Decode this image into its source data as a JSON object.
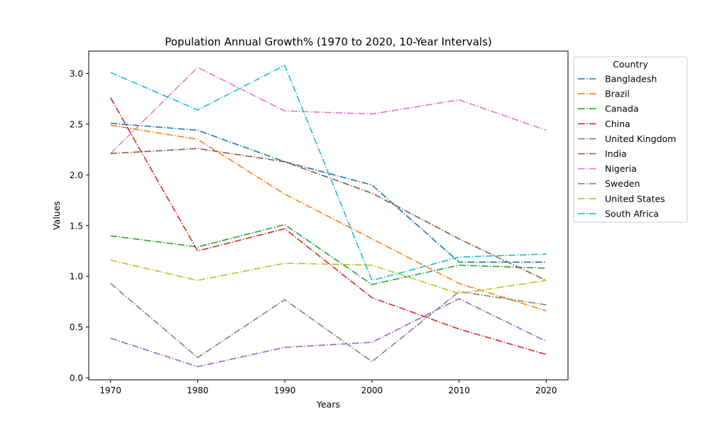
{
  "chart_data": {
    "type": "line",
    "title": "Population Annual Growth% (1970 to 2020, 10-Year Intervals)",
    "xlabel": "Years",
    "ylabel": "Values",
    "x": [
      1970,
      1980,
      1990,
      2000,
      2010,
      2020
    ],
    "xticks": [
      "1970",
      "1980",
      "1990",
      "2000",
      "2010",
      "2020"
    ],
    "yticks": [
      "0.0",
      "0.5",
      "1.0",
      "1.5",
      "2.0",
      "2.5",
      "3.0"
    ],
    "ylim": [
      -0.02,
      3.22
    ],
    "xlim": [
      1967.5,
      2022.5
    ],
    "grid": false,
    "legend": {
      "title": "Country",
      "placement": "outside-right"
    },
    "line_style": "dash-dot",
    "series": [
      {
        "name": "Bangladesh",
        "color": "#1f77b4",
        "values": [
          2.51,
          2.44,
          2.13,
          1.9,
          1.14,
          1.14
        ]
      },
      {
        "name": "Brazil",
        "color": "#ff7f0e",
        "values": [
          2.49,
          2.35,
          1.81,
          1.37,
          0.93,
          0.66
        ]
      },
      {
        "name": "Canada",
        "color": "#2ca02c",
        "values": [
          1.4,
          1.29,
          1.51,
          0.92,
          1.11,
          1.08
        ]
      },
      {
        "name": "China",
        "color": "#d62728",
        "values": [
          2.76,
          1.25,
          1.47,
          0.79,
          0.48,
          0.23
        ]
      },
      {
        "name": "United Kingdom",
        "color": "#9467bd",
        "values": [
          0.39,
          0.11,
          0.3,
          0.35,
          0.78,
          0.36
        ]
      },
      {
        "name": "India",
        "color": "#8c564b",
        "values": [
          2.21,
          2.26,
          2.13,
          1.82,
          1.37,
          0.96
        ]
      },
      {
        "name": "Nigeria",
        "color": "#e377c2",
        "values": [
          2.21,
          3.06,
          2.63,
          2.6,
          2.74,
          2.44
        ]
      },
      {
        "name": "Sweden",
        "color": "#7f7f7f",
        "values": [
          0.93,
          0.2,
          0.77,
          0.16,
          0.85,
          0.72
        ]
      },
      {
        "name": "United States",
        "color": "#bcbd22",
        "values": [
          1.16,
          0.96,
          1.13,
          1.11,
          0.83,
          0.96
        ]
      },
      {
        "name": "South Africa",
        "color": "#17becf",
        "values": [
          3.01,
          2.64,
          3.08,
          0.96,
          1.19,
          1.22
        ]
      }
    ]
  }
}
